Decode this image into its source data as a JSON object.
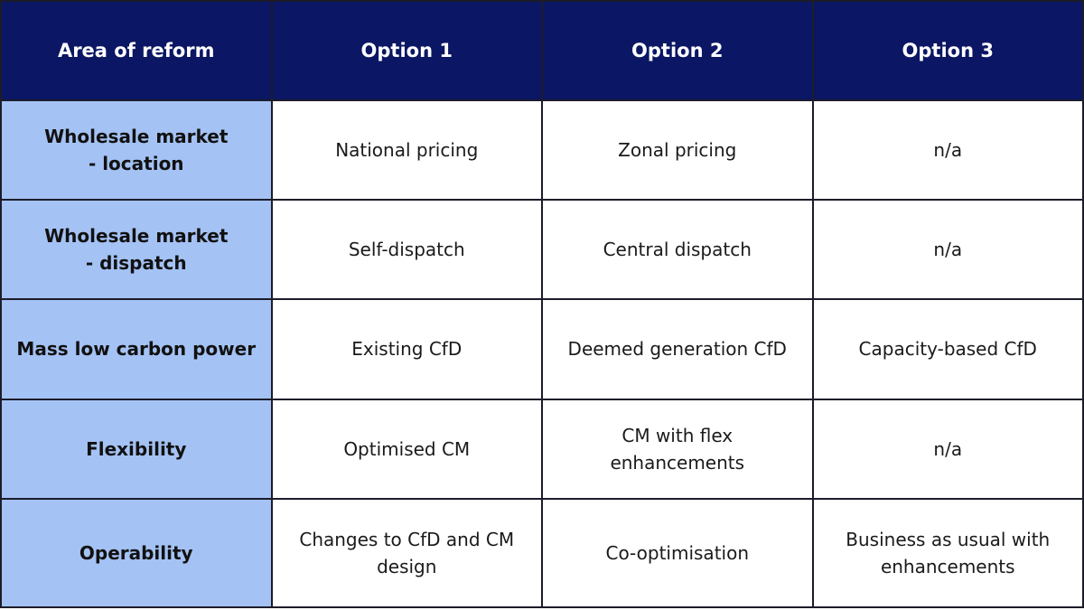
{
  "header": [
    "Area of reform",
    "Option 1",
    "Option 2",
    "Option 3"
  ],
  "rows": [
    {
      "area": "Wholesale market - location",
      "option1": "National pricing",
      "option2": "Zonal pricing",
      "option3": "n/a"
    },
    {
      "area": "Wholesale market - dispatch",
      "option1": "Self-dispatch",
      "option2": "Central dispatch",
      "option3": "n/a"
    },
    {
      "area": "Mass low carbon power",
      "option1": "Existing CfD",
      "option2": "Deemed generation CfD",
      "option3": "Capacity-based CfD"
    },
    {
      "area": "Flexibility",
      "option1": "Optimised CM",
      "option2": "CM with flex enhancements",
      "option3": "n/a"
    },
    {
      "area": "Operability",
      "option1": "Changes to CfD and CM design",
      "option2": "Co-optimisation",
      "option3": "Business as usual with enhancements"
    }
  ],
  "colors": {
    "header_bg": "#0b1664",
    "area_bg": "#a4c2f4",
    "border": "#1c1c2a"
  }
}
